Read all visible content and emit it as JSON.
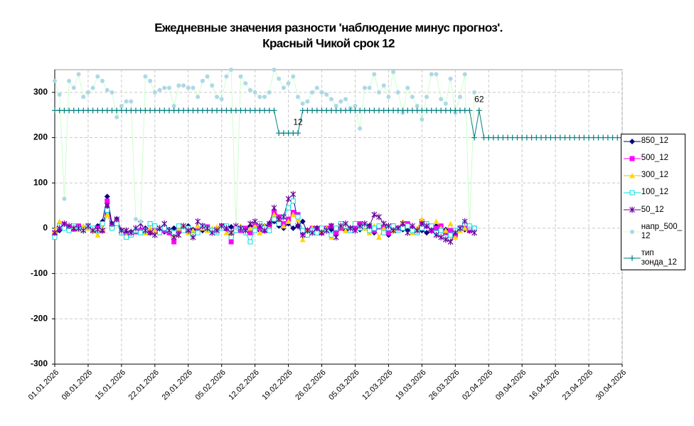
{
  "chart_data": {
    "type": "line",
    "title": [
      "Ежедневные значения разности 'наблюдение минус прогноз'.",
      "Красный Чикой     срок 12"
    ],
    "x": [
      "01.01.2026",
      "02.01.2026",
      "03.01.2026",
      "04.01.2026",
      "05.01.2026",
      "06.01.2026",
      "07.01.2026",
      "08.01.2026",
      "09.01.2026",
      "10.01.2026",
      "11.01.2026",
      "12.01.2026",
      "13.01.2026",
      "14.01.2026",
      "15.01.2026",
      "16.01.2026",
      "17.01.2026",
      "18.01.2026",
      "19.01.2026",
      "20.01.2026",
      "21.01.2026",
      "22.01.2026",
      "23.01.2026",
      "24.01.2026",
      "25.01.2026",
      "26.01.2026",
      "27.01.2026",
      "28.01.2026",
      "29.01.2026",
      "30.01.2026",
      "31.01.2026",
      "01.02.2026",
      "02.02.2026",
      "03.02.2026",
      "04.02.2026",
      "05.02.2026",
      "06.02.2026",
      "07.02.2026",
      "08.02.2026",
      "09.02.2026",
      "10.02.2026",
      "11.02.2026",
      "12.02.2026",
      "13.02.2026",
      "14.02.2026",
      "15.02.2026",
      "16.02.2026",
      "17.02.2026",
      "18.02.2026",
      "19.02.2026",
      "20.02.2026",
      "21.02.2026",
      "22.02.2026",
      "23.02.2026",
      "24.02.2026",
      "25.02.2026",
      "26.02.2026",
      "27.02.2026",
      "28.02.2026",
      "01.03.2026",
      "02.03.2026",
      "03.03.2026",
      "04.03.2026",
      "05.03.2026",
      "06.03.2026",
      "07.03.2026",
      "08.03.2026",
      "09.03.2026",
      "10.03.2026",
      "11.03.2026",
      "12.03.2026",
      "13.03.2026",
      "14.03.2026",
      "15.03.2026",
      "16.03.2026",
      "17.03.2026",
      "18.03.2026",
      "19.03.2026",
      "20.03.2026",
      "21.03.2026",
      "22.03.2026",
      "23.03.2026",
      "24.03.2026",
      "25.03.2026",
      "26.03.2026",
      "27.03.2026",
      "28.03.2026",
      "29.03.2026",
      "30.03.2026",
      "31.03.2026",
      "01.04.2026",
      "02.04.2026",
      "03.04.2026",
      "04.04.2026",
      "05.04.2026",
      "06.04.2026",
      "07.04.2026",
      "08.04.2026",
      "09.04.2026",
      "10.04.2026",
      "11.04.2026",
      "12.04.2026",
      "13.04.2026",
      "14.04.2026",
      "15.04.2026",
      "16.04.2026",
      "17.04.2026",
      "18.04.2026",
      "19.04.2026",
      "20.04.2026",
      "21.04.2026",
      "22.04.2026",
      "23.04.2026",
      "24.04.2026",
      "25.04.2026",
      "26.04.2026",
      "27.04.2026",
      "28.04.2026",
      "29.04.2026",
      "30.04.2026"
    ],
    "xlim": [
      "01.01.2026",
      "30.04.2026"
    ],
    "xticks": [
      "01.01.2026",
      "08.01.2026",
      "15.01.2026",
      "22.01.2026",
      "29.01.2026",
      "05.02.2026",
      "12.02.2026",
      "19.02.2026",
      "26.02.2026",
      "05.03.2026",
      "12.03.2026",
      "19.03.2026",
      "26.03.2026",
      "02.04.2026",
      "09.04.2026",
      "16.04.2026",
      "23.04.2026",
      "30.04.2026"
    ],
    "ylim": [
      -300,
      350
    ],
    "yticks": [
      -300,
      -200,
      -100,
      0,
      100,
      200,
      300
    ],
    "grid": true,
    "series": [
      {
        "name": "850_12",
        "color": "#000080",
        "marker": "diamond",
        "values": [
          -15,
          -5,
          5,
          0,
          3,
          0,
          -2,
          2,
          -3,
          5,
          15,
          70,
          10,
          20,
          -5,
          -10,
          -8,
          -5,
          -3,
          0,
          -10,
          5,
          -5,
          -8,
          -3,
          0,
          -5,
          2,
          5,
          -3,
          0,
          -5,
          2,
          -3,
          0,
          5,
          -2,
          3,
          -5,
          0,
          -3,
          5,
          0,
          -5,
          5,
          10,
          15,
          5,
          0,
          10,
          0,
          5,
          15,
          -10,
          -5,
          0,
          -5,
          0,
          -3,
          0,
          5,
          -5,
          0,
          5,
          -3,
          0,
          5,
          -10,
          3,
          0,
          -15,
          5,
          0,
          -3,
          -5,
          0,
          -3,
          -5,
          -10,
          0,
          5,
          -5,
          -3,
          -10,
          -5,
          0,
          -3,
          -5,
          0,
          null,
          null,
          null,
          null,
          null,
          null,
          null,
          null,
          null,
          null,
          null,
          null,
          null,
          null,
          null,
          null,
          null,
          null,
          null,
          null,
          null,
          null,
          null,
          null,
          null,
          null,
          null,
          null,
          null,
          null,
          null
        ]
      },
      {
        "name": "500_12",
        "color": "#ff00ff",
        "marker": "square",
        "values": [
          -10,
          0,
          8,
          2,
          -2,
          5,
          0,
          3,
          -5,
          0,
          -5,
          60,
          5,
          15,
          -10,
          -15,
          -12,
          -8,
          -5,
          -3,
          -5,
          0,
          -8,
          -5,
          -10,
          -30,
          -5,
          0,
          -3,
          -10,
          -5,
          0,
          3,
          -5,
          -2,
          5,
          0,
          -30,
          0,
          -5,
          0,
          -10,
          5,
          0,
          -5,
          5,
          35,
          25,
          10,
          20,
          35,
          30,
          -10,
          -5,
          0,
          -5,
          -10,
          0,
          5,
          -10,
          0,
          5,
          -5,
          0,
          10,
          5,
          0,
          -5,
          3,
          0,
          -10,
          5,
          0,
          5,
          10,
          0,
          -5,
          15,
          5,
          -5,
          0,
          5,
          -10,
          -5,
          -15,
          0,
          5,
          -5,
          0,
          null,
          null,
          null,
          null,
          null,
          null,
          null,
          null,
          null,
          null,
          null,
          null,
          null,
          null,
          null,
          null,
          null,
          null,
          null,
          null,
          null,
          null,
          null,
          null,
          null,
          null,
          null,
          null,
          null,
          null,
          null
        ]
      },
      {
        "name": "300_12",
        "color": "#e6c000",
        "marker_color": "#ffd700",
        "marker": "triangle",
        "values": [
          -5,
          15,
          5,
          0,
          3,
          -3,
          5,
          0,
          -5,
          -15,
          0,
          30,
          5,
          15,
          -5,
          -15,
          -10,
          -5,
          -8,
          -10,
          0,
          -5,
          -10,
          5,
          -5,
          -15,
          0,
          5,
          -10,
          -5,
          5,
          0,
          -5,
          0,
          3,
          5,
          -10,
          -15,
          0,
          5,
          -5,
          0,
          5,
          -10,
          5,
          0,
          30,
          20,
          5,
          15,
          30,
          20,
          -25,
          -5,
          0,
          -10,
          -5,
          0,
          -20,
          0,
          5,
          -5,
          0,
          10,
          5,
          0,
          -10,
          5,
          -20,
          0,
          5,
          -5,
          0,
          15,
          5,
          -10,
          0,
          20,
          10,
          5,
          15,
          0,
          -5,
          10,
          -20,
          -5,
          0,
          5,
          0,
          null,
          null,
          null,
          null,
          null,
          null,
          null,
          null,
          null,
          null,
          null,
          null,
          null,
          null,
          null,
          null,
          null,
          null,
          null,
          null,
          null,
          null,
          null,
          null,
          null,
          null,
          null,
          null,
          null,
          null,
          null
        ]
      },
      {
        "name": "100_12",
        "color": "#00e0e0",
        "marker": "square-open",
        "values": [
          -20,
          5,
          0,
          -5,
          5,
          0,
          -3,
          5,
          0,
          -5,
          10,
          40,
          0,
          10,
          -10,
          -20,
          -15,
          -5,
          -10,
          -5,
          10,
          5,
          -10,
          0,
          -5,
          -10,
          5,
          -5,
          0,
          -15,
          -10,
          5,
          0,
          -5,
          -10,
          0,
          5,
          -20,
          -5,
          0,
          -10,
          -30,
          -5,
          10,
          0,
          -5,
          20,
          10,
          25,
          45,
          60,
          25,
          -5,
          -15,
          -5,
          -10,
          0,
          -5,
          -15,
          0,
          10,
          5,
          -5,
          10,
          0,
          5,
          -5,
          0,
          5,
          -10,
          0,
          5,
          -5,
          0,
          5,
          -5,
          -10,
          0,
          10,
          5,
          -10,
          -5,
          -20,
          -15,
          -5,
          0,
          10,
          5,
          0,
          null,
          null,
          null,
          null,
          null,
          null,
          null,
          null,
          null,
          null,
          null,
          null,
          null,
          null,
          null,
          null,
          null,
          null,
          null,
          null,
          null,
          null,
          null,
          null,
          null,
          null,
          null,
          null,
          null,
          null,
          null
        ]
      },
      {
        "name": "50_12",
        "color": "#660099",
        "marker": "star",
        "values": [
          -10,
          0,
          10,
          5,
          0,
          0,
          -5,
          5,
          -5,
          -3,
          -5,
          50,
          10,
          20,
          -5,
          -5,
          -10,
          0,
          10,
          -5,
          -10,
          -15,
          0,
          10,
          -5,
          -20,
          -15,
          5,
          -5,
          -20,
          15,
          5,
          0,
          -10,
          -5,
          5,
          0,
          -10,
          5,
          0,
          -5,
          10,
          15,
          5,
          -5,
          10,
          45,
          20,
          25,
          65,
          75,
          5,
          -15,
          -5,
          -10,
          0,
          -10,
          -5,
          5,
          -20,
          5,
          10,
          0,
          -5,
          5,
          10,
          5,
          30,
          25,
          10,
          5,
          -5,
          0,
          10,
          -10,
          5,
          -5,
          10,
          5,
          -5,
          -15,
          -20,
          -25,
          -30,
          -10,
          0,
          15,
          -5,
          -10,
          null,
          null,
          null,
          null,
          null,
          null,
          null,
          null,
          null,
          null,
          null,
          null,
          null,
          null,
          null,
          null,
          null,
          null,
          null,
          null,
          null,
          null,
          null,
          null,
          null,
          null,
          null,
          null,
          null,
          null,
          null
        ]
      },
      {
        "name": "напр_500_12",
        "color": "#ccffcc",
        "marker_color": "#add8e6",
        "marker": "circle",
        "values": [
          325,
          295,
          65,
          325,
          310,
          340,
          290,
          300,
          310,
          335,
          325,
          305,
          300,
          245,
          270,
          280,
          280,
          20,
          15,
          335,
          325,
          300,
          305,
          310,
          310,
          270,
          315,
          315,
          310,
          310,
          290,
          325,
          335,
          315,
          290,
          285,
          335,
          350,
          0,
          335,
          320,
          305,
          300,
          290,
          290,
          300,
          350,
          330,
          310,
          320,
          335,
          290,
          275,
          280,
          300,
          310,
          300,
          295,
          285,
          270,
          280,
          285,
          265,
          270,
          220,
          310,
          310,
          340,
          300,
          315,
          290,
          345,
          300,
          255,
          310,
          290,
          270,
          240,
          290,
          340,
          340,
          285,
          275,
          330,
          255,
          290,
          340,
          0,
          300,
          null,
          null,
          null,
          null,
          null,
          null,
          null,
          null,
          null,
          null,
          null,
          null,
          null,
          null,
          null,
          null,
          null,
          null,
          null,
          null,
          null,
          null,
          null,
          null,
          null,
          null,
          null,
          null,
          null,
          null,
          null
        ]
      },
      {
        "name": "тип зонда_12",
        "color": "#007f7f",
        "marker": "plus",
        "values": [
          260,
          260,
          260,
          260,
          260,
          260,
          260,
          260,
          260,
          260,
          260,
          260,
          260,
          260,
          260,
          260,
          260,
          260,
          260,
          260,
          260,
          260,
          260,
          260,
          260,
          260,
          260,
          260,
          260,
          260,
          260,
          260,
          260,
          260,
          260,
          260,
          260,
          260,
          260,
          260,
          260,
          260,
          260,
          260,
          260,
          260,
          260,
          210,
          210,
          210,
          210,
          210,
          260,
          260,
          260,
          260,
          260,
          260,
          260,
          260,
          260,
          260,
          260,
          260,
          260,
          260,
          260,
          260,
          260,
          260,
          260,
          260,
          260,
          260,
          260,
          260,
          260,
          260,
          260,
          260,
          260,
          260,
          260,
          260,
          260,
          260,
          260,
          260,
          200,
          260,
          200,
          200,
          200,
          200,
          200,
          200,
          200,
          200,
          200,
          200,
          200,
          200,
          200,
          200,
          200,
          200,
          200,
          200,
          200,
          200,
          200,
          200,
          200,
          200,
          200,
          200,
          200,
          200,
          200,
          200
        ]
      }
    ],
    "annotations": [
      {
        "text": "12",
        "x": "21.02.2026",
        "y": 210
      },
      {
        "text": "62",
        "x": "31.03.2026",
        "y": 260
      }
    ]
  }
}
